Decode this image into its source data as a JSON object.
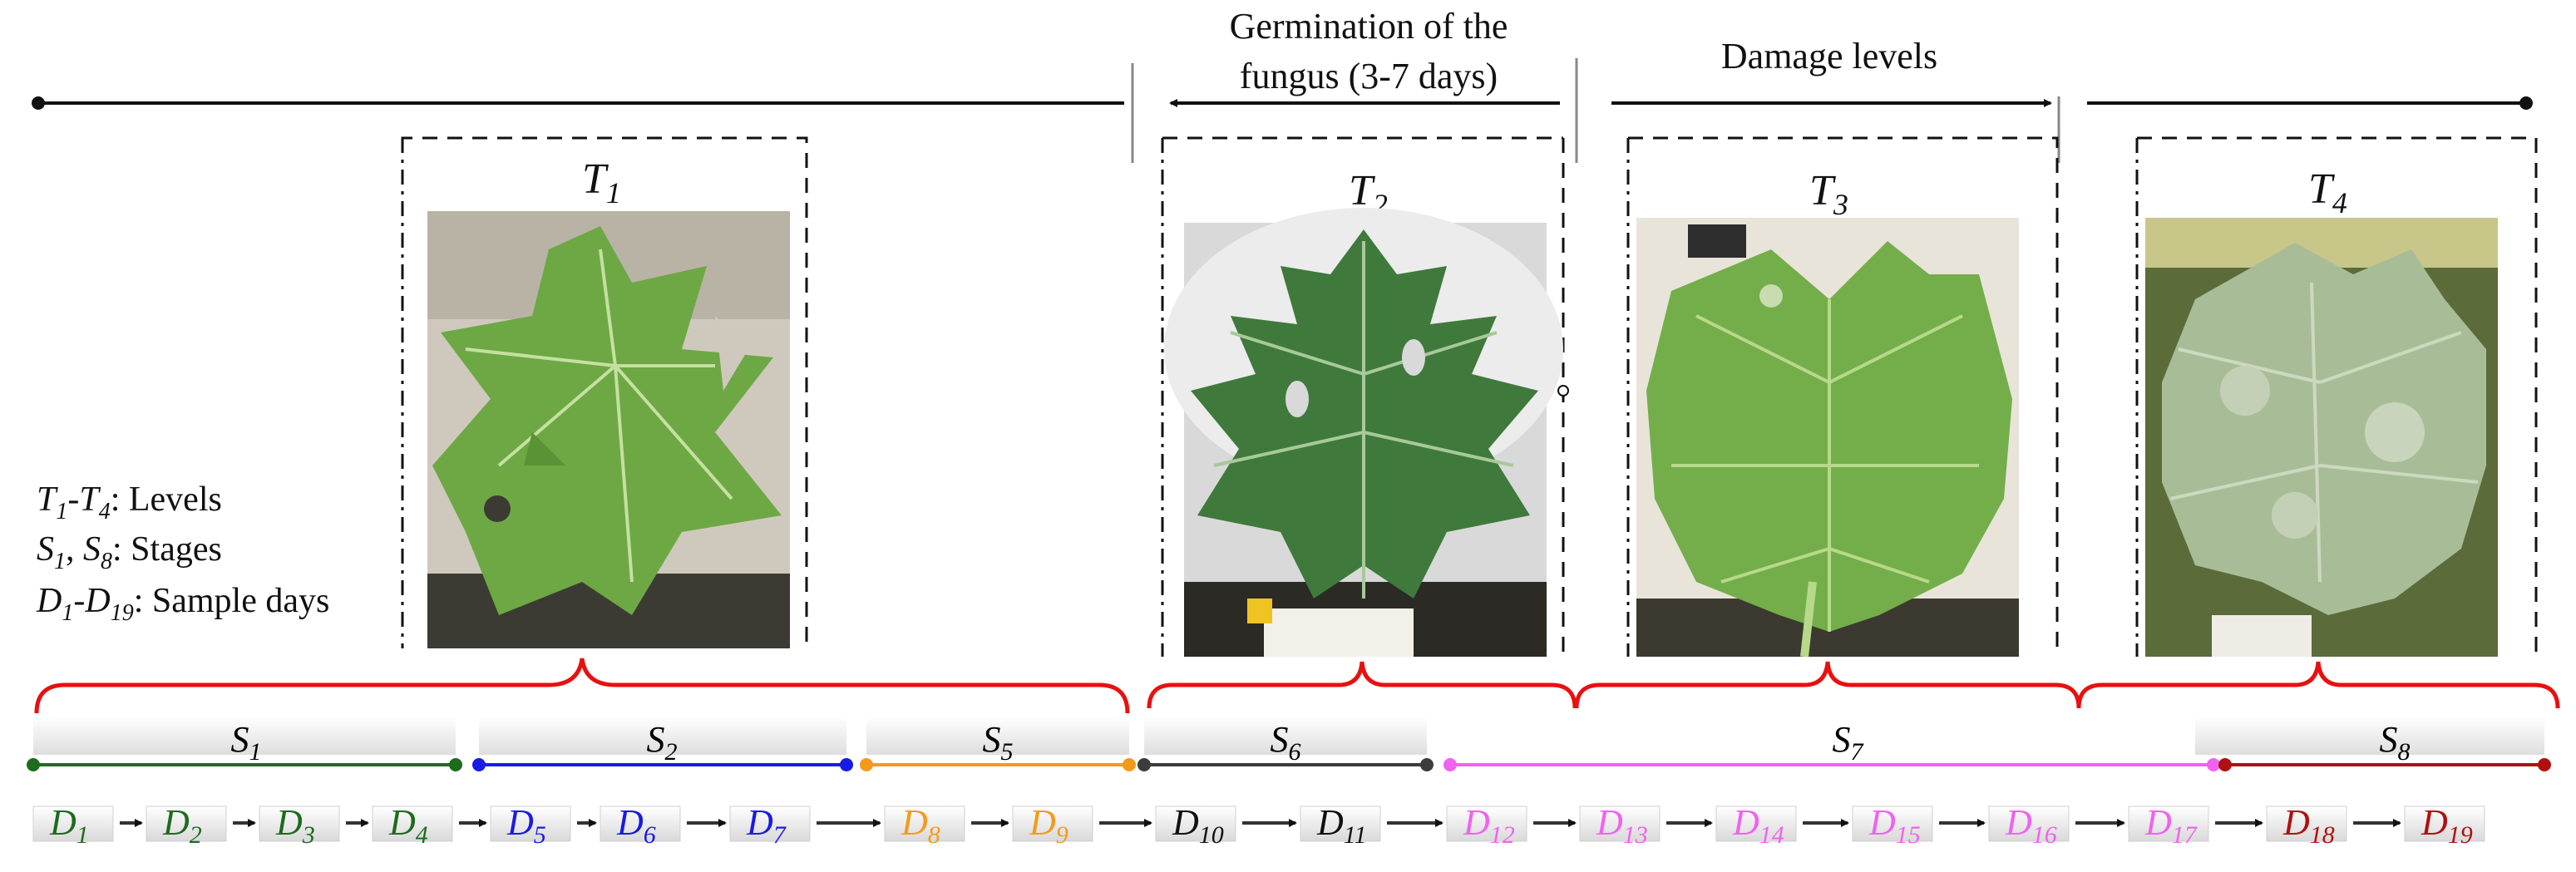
{
  "header": {
    "germination_line1": "Germination of the",
    "germination_line2": "fungus (3-7 days)",
    "damage_levels": "Damage levels"
  },
  "panels": [
    {
      "id": "T1",
      "letter": "T",
      "sub": "1"
    },
    {
      "id": "T2",
      "letter": "T",
      "sub": "2"
    },
    {
      "id": "T3",
      "letter": "T",
      "sub": "3"
    },
    {
      "id": "T4",
      "letter": "T",
      "sub": "4"
    }
  ],
  "legend": {
    "line1": {
      "a": "T",
      "a_sub": "1",
      "dash": "-",
      "b": "T",
      "b_sub": "4",
      "text": ": Levels"
    },
    "line2": {
      "a": "S",
      "a_sub": "1",
      "sep": ", ",
      "b": "S",
      "b_sub": "8",
      "text": ": Stages"
    },
    "line3": {
      "a": "D",
      "a_sub": "1",
      "dash": "-",
      "b": "D",
      "b_sub": "19",
      "text": ": Sample days"
    }
  },
  "stages": [
    {
      "label": "S",
      "sub": "1",
      "color": "#1e6b1e"
    },
    {
      "label": "S",
      "sub": "2",
      "color": "#1a1ae6"
    },
    {
      "label": "S",
      "sub": "5",
      "color": "#f39a1c"
    },
    {
      "label": "S",
      "sub": "6",
      "color": "#3c3c3c"
    },
    {
      "label": "S",
      "sub": "7",
      "color": "#f062f0"
    },
    {
      "label": "S",
      "sub": "8",
      "color": "#b01010"
    }
  ],
  "days": [
    {
      "label": "D",
      "sub": "1",
      "color": "#1e6b1e"
    },
    {
      "label": "D",
      "sub": "2",
      "color": "#1e6b1e"
    },
    {
      "label": "D",
      "sub": "3",
      "color": "#1e6b1e"
    },
    {
      "label": "D",
      "sub": "4",
      "color": "#1e6b1e"
    },
    {
      "label": "D",
      "sub": "5",
      "color": "#1a1ae6"
    },
    {
      "label": "D",
      "sub": "6",
      "color": "#1a1ae6"
    },
    {
      "label": "D",
      "sub": "7",
      "color": "#1a1ae6"
    },
    {
      "label": "D",
      "sub": "8",
      "color": "#f39a1c"
    },
    {
      "label": "D",
      "sub": "9",
      "color": "#f39a1c"
    },
    {
      "label": "D",
      "sub": "10",
      "color": "#111111"
    },
    {
      "label": "D",
      "sub": "11",
      "color": "#111111"
    },
    {
      "label": "D",
      "sub": "12",
      "color": "#f062f0"
    },
    {
      "label": "D",
      "sub": "13",
      "color": "#f062f0"
    },
    {
      "label": "D",
      "sub": "14",
      "color": "#f062f0"
    },
    {
      "label": "D",
      "sub": "15",
      "color": "#f062f0"
    },
    {
      "label": "D",
      "sub": "16",
      "color": "#f062f0"
    },
    {
      "label": "D",
      "sub": "17",
      "color": "#f062f0"
    },
    {
      "label": "D",
      "sub": "18",
      "color": "#b01010"
    },
    {
      "label": "D",
      "sub": "19",
      "color": "#b01010"
    }
  ],
  "colors": {
    "brace": "#e81010",
    "leaf_healthy": "#6da845",
    "leaf_dark": "#3f7a3c",
    "leaf_infected": "#9fb890",
    "pot": "#e4e4e4"
  }
}
